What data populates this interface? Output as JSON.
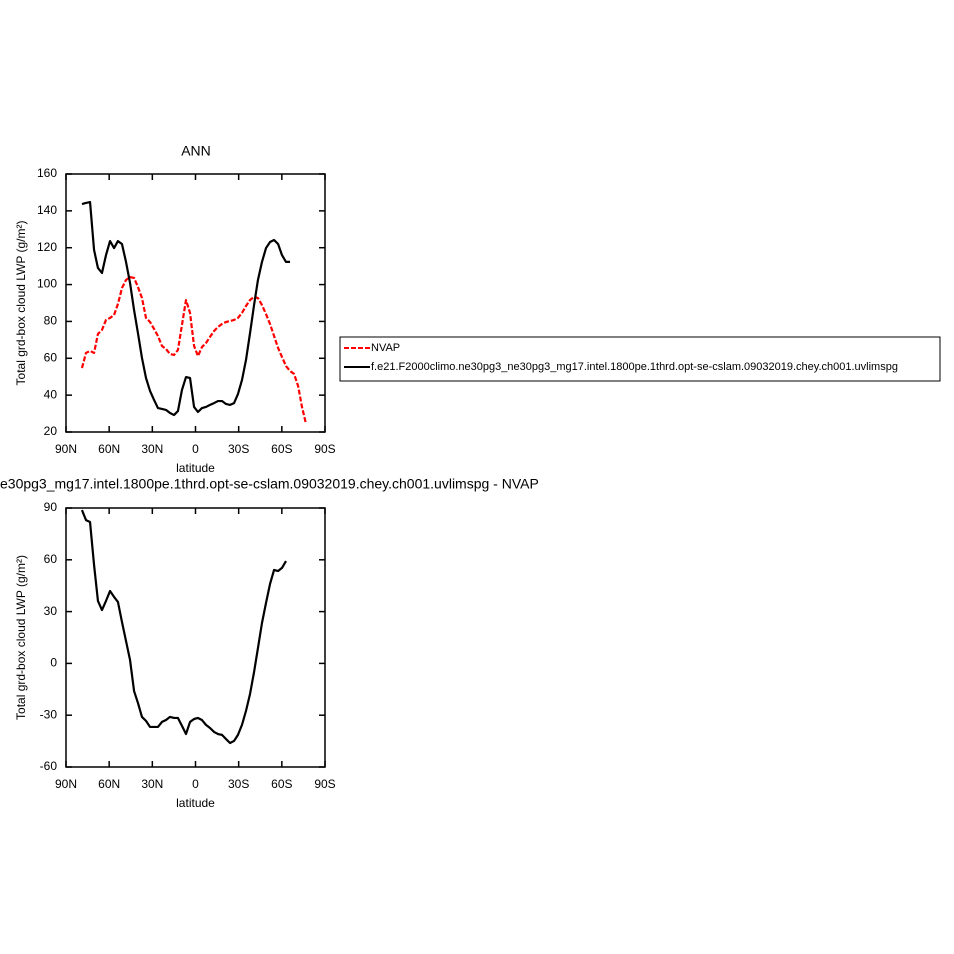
{
  "chart_data": [
    {
      "type": "line",
      "title": "ANN",
      "x_label": "latitude",
      "y_label": "Total grd-box cloud LWP (g/m²)",
      "x": [
        78.9,
        76.1,
        73.3,
        70.5,
        67.8,
        65.0,
        62.2,
        59.4,
        56.6,
        53.9,
        51.1,
        48.3,
        45.5,
        42.7,
        40.0,
        37.2,
        34.4,
        31.6,
        28.8,
        26.1,
        23.3,
        20.5,
        17.7,
        14.9,
        12.2,
        9.4,
        6.6,
        3.8,
        1.0,
        -1.7,
        -4.5,
        -7.3,
        -10.1,
        -12.9,
        -15.6,
        -18.4,
        -21.2,
        -24.0,
        -26.8,
        -29.5,
        -32.3,
        -35.1,
        -37.9,
        -40.7,
        -43.4,
        -46.2,
        -49.0,
        -51.8,
        -54.6,
        -57.4,
        -60.1,
        -62.9,
        -65.7,
        -68.5,
        -71.3,
        -74.0,
        -76.8
      ],
      "series": [
        {
          "name": "NVAP",
          "color": "#ff0000",
          "dashed": true,
          "values": [
            54.7,
            62.9,
            64,
            62.9,
            73.2,
            75.4,
            80.8,
            81.9,
            83.5,
            89.5,
            98.1,
            102.5,
            104.1,
            103.6,
            98.7,
            92.7,
            81.9,
            79.7,
            75.9,
            72.1,
            66.7,
            65,
            62.3,
            61.8,
            64.5,
            78.1,
            91.6,
            84.6,
            66.7,
            61.2,
            66.1,
            68.3,
            71.6,
            74.8,
            77,
            78.6,
            79.7,
            80.2,
            80.8,
            81.9,
            84.6,
            88.4,
            91.6,
            93.3,
            92.7,
            88.9,
            84,
            78.6,
            72.1,
            65.6,
            60.7,
            55.8,
            53.1,
            51.5,
            45,
            33.6,
            24.4
          ]
        },
        {
          "name": "f.e21.F2000climo.ne30pg3_ne30pg3_mg17.intel.1800pe.1thrd.opt-se-cslam.09032019.chey.ch001.uvlimspg",
          "color": "#000000",
          "values": [
            143.7,
            144.3,
            144.8,
            118.8,
            109,
            106.3,
            116,
            123.6,
            119.8,
            123.6,
            122,
            112.3,
            100.9,
            86.2,
            73.7,
            60.2,
            49.3,
            42.3,
            37.4,
            33,
            32.5,
            32,
            30.3,
            29.2,
            31.4,
            42.8,
            49.8,
            49.3,
            33.6,
            30.9,
            33,
            33.6,
            34.7,
            35.7,
            36.8,
            36.8,
            35.2,
            34.7,
            35.7,
            40.6,
            48.2,
            59.1,
            73.7,
            88.9,
            102.5,
            112.3,
            119.8,
            123.1,
            124.2,
            122,
            116,
            112.3,
            112.3,
            null,
            null,
            null,
            null
          ]
        }
      ],
      "xlim": [
        90,
        -90
      ],
      "ylim": [
        20,
        160
      ],
      "xticks": [
        {
          "value": 90,
          "label": "90N"
        },
        {
          "value": 60,
          "label": "60N"
        },
        {
          "value": 30,
          "label": "30N"
        },
        0,
        {
          "value": -30,
          "label": "30S"
        },
        {
          "value": -60,
          "label": "60S"
        },
        {
          "value": -90,
          "label": "90S"
        }
      ],
      "yticks": [
        20,
        40,
        60,
        80,
        100,
        120,
        140,
        160
      ],
      "legend": "right"
    },
    {
      "type": "line",
      "title": "e30pg3_mg17.intel.1800pe.1thrd.opt-se-cslam.09032019.chey.ch001.uvlimspg - NVAP",
      "x_label": "latitude",
      "y_label": "Total grd-box cloud LWP (g/m²)",
      "x": [
        78.9,
        76.1,
        73.3,
        70.5,
        67.8,
        65.0,
        62.2,
        59.4,
        56.6,
        53.9,
        51.1,
        48.3,
        45.5,
        42.7,
        40.0,
        37.2,
        34.4,
        31.6,
        28.8,
        26.1,
        23.3,
        20.5,
        17.7,
        14.9,
        12.2,
        9.4,
        6.6,
        3.8,
        1.0,
        -1.7,
        -4.5,
        -7.3,
        -10.1,
        -12.9,
        -15.6,
        -18.4,
        -21.2,
        -24.0,
        -26.8,
        -29.5,
        -32.3,
        -35.1,
        -37.9,
        -40.7,
        -43.4,
        -46.2,
        -49.0,
        -51.8,
        -54.6,
        -57.4,
        -60.1,
        -62.9
      ],
      "values": [
        88.8,
        83,
        81.9,
        57,
        36.2,
        30.9,
        36.2,
        41.9,
        38.5,
        35.6,
        24,
        13,
        2,
        -16,
        -22.9,
        -31,
        -33.3,
        -36.8,
        -36.8,
        -36.8,
        -33.9,
        -32.8,
        -31,
        -31.6,
        -31.6,
        -36.2,
        -40.9,
        -33.9,
        -32.2,
        -31.6,
        -32.8,
        -35.6,
        -37.4,
        -39.7,
        -40.9,
        -41.4,
        -43.8,
        -46.1,
        -44.9,
        -41.4,
        -35.6,
        -27.5,
        -17.7,
        -5,
        8.9,
        23.4,
        35,
        46,
        54.1,
        53.5,
        55.3,
        59.3
      ],
      "color": "#000000",
      "xlim": [
        90,
        -90
      ],
      "ylim": [
        -60,
        90
      ],
      "xticks": [
        {
          "value": 90,
          "label": "90N"
        },
        {
          "value": 60,
          "label": "60N"
        },
        {
          "value": 30,
          "label": "30N"
        },
        0,
        {
          "value": -30,
          "label": "30S"
        },
        {
          "value": -60,
          "label": "60S"
        },
        {
          "value": -90,
          "label": "90S"
        }
      ],
      "yticks": [
        -60,
        -30,
        0,
        30,
        60,
        90
      ]
    }
  ]
}
